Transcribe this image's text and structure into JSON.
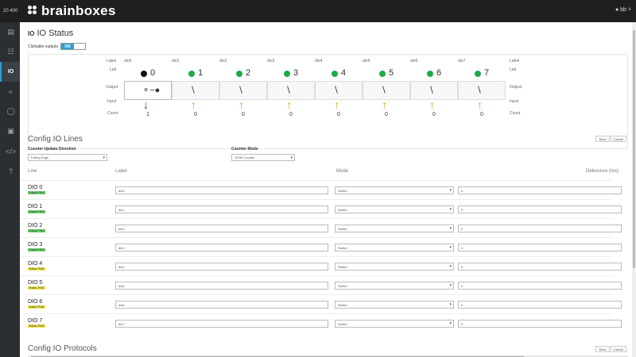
{
  "topbar": {
    "device": "20 400",
    "brand": "brainboxes",
    "user": "bb"
  },
  "sidebar": {
    "active_label": "IO"
  },
  "title": {
    "icon": "IO",
    "text": "IO Status"
  },
  "clickable_outputs": {
    "label": "Clickable outputs",
    "state": "ON"
  },
  "io_status": {
    "row_labels": {
      "label": "Label",
      "led": "Led",
      "output": "Output",
      "input": "Input",
      "count": "Count"
    },
    "lines": [
      {
        "name": "dio0",
        "num": "0",
        "led_color": "#111111",
        "arrow": "down",
        "count": "1",
        "output_on": true
      },
      {
        "name": "dio1",
        "num": "1",
        "led_color": "#1faa4a",
        "arrow": "up",
        "count": "0",
        "output_on": false
      },
      {
        "name": "dio2",
        "num": "2",
        "led_color": "#1faa4a",
        "arrow": "up",
        "count": "0",
        "output_on": false
      },
      {
        "name": "dio3",
        "num": "3",
        "led_color": "#1faa4a",
        "arrow": "up",
        "count": "0",
        "output_on": false
      },
      {
        "name": "dio4",
        "num": "4",
        "led_color": "#1faa4a",
        "arrow": "up",
        "count": "0",
        "output_on": false
      },
      {
        "name": "dio5",
        "num": "5",
        "led_color": "#1faa4a",
        "arrow": "up",
        "count": "0",
        "output_on": false
      },
      {
        "name": "dio6",
        "num": "6",
        "led_color": "#1faa4a",
        "arrow": "up",
        "count": "0",
        "output_on": false
      },
      {
        "name": "dio7",
        "num": "7",
        "led_color": "#1faa4a",
        "arrow": "up",
        "count": "0",
        "output_on": false
      }
    ]
  },
  "config_lines": {
    "title": "Config IO Lines",
    "save": "Save",
    "cancel": "Cancel",
    "counter_update_label": "Counter Update Direction",
    "counter_update_value": "Falling Edge",
    "counter_mode_label": "Counter Mode",
    "counter_mode_value": "16 Bit Counter",
    "headers": {
      "line": "Line",
      "label": "Label",
      "mode": "Mode",
      "debounce": "Debounce (ms)"
    },
    "rows": [
      {
        "name": "DIO 0",
        "tag": "Output: PNG",
        "tag_color": "#6bd36b",
        "label": "dio0",
        "mode": "Switch",
        "debounce": "0"
      },
      {
        "name": "DIO 1",
        "tag": "Output: PNG",
        "tag_color": "#6bd36b",
        "label": "dio1",
        "mode": "Switch",
        "debounce": "0"
      },
      {
        "name": "DIO 2",
        "tag": "Output: PNG",
        "tag_color": "#6bd36b",
        "label": "dio2",
        "mode": "Switch",
        "debounce": "0"
      },
      {
        "name": "DIO 3",
        "tag": "Output: PNG",
        "tag_color": "#6bd36b",
        "label": "dio3",
        "mode": "Switch",
        "debounce": "0"
      },
      {
        "name": "DIO 4",
        "tag": "Yellow: PNG",
        "tag_color": "#f2e24a",
        "label": "dio4",
        "mode": "Switch",
        "debounce": "0"
      },
      {
        "name": "DIO 5",
        "tag": "Yellow: PNG",
        "tag_color": "#f2e24a",
        "label": "dio5",
        "mode": "Switch",
        "debounce": "0"
      },
      {
        "name": "DIO 6",
        "tag": "Yellow: PNG",
        "tag_color": "#f2e24a",
        "label": "dio6",
        "mode": "Switch",
        "debounce": "0"
      },
      {
        "name": "DIO 7",
        "tag": "Yellow: PNG",
        "tag_color": "#f2e24a",
        "label": "dio7",
        "mode": "Switch",
        "debounce": "0"
      }
    ]
  },
  "config_protocols": {
    "title": "Config IO Protocols",
    "save": "Save",
    "cancel": "Cancel"
  },
  "colors": {
    "accent": "#2a9fd6",
    "arrow_up": "#f39c12",
    "arrow_down": "#7b1fa2"
  }
}
